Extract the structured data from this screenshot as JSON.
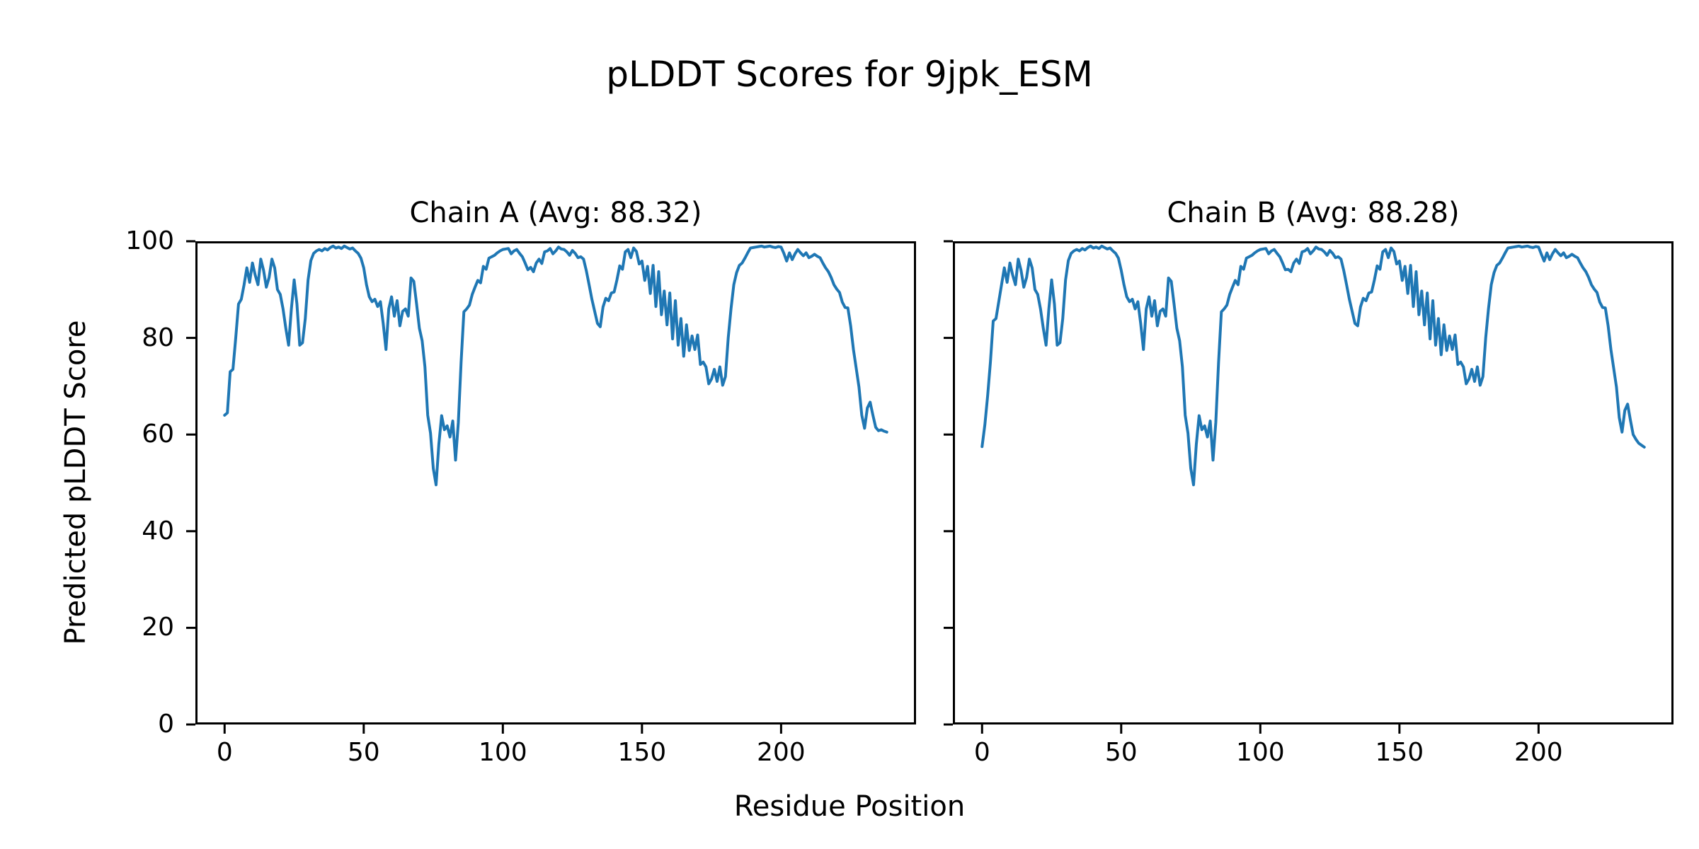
{
  "figure": {
    "title": "pLDDT Scores for 9jpk_ESM",
    "x_axis_label": "Residue Position",
    "y_axis_label": "Predicted pLDDT Score",
    "background_color": "#ffffff",
    "text_color": "#000000"
  },
  "chart_data": {
    "type": "line",
    "title": "pLDDT Scores for 9jpk_ESM",
    "xlabel": "Residue Position",
    "ylabel": "Predicted pLDDT Score",
    "line_color": "#1f77b4",
    "line_width": 4,
    "grid": false,
    "legend": "none",
    "xlim": [
      -10.5,
      248.5
    ],
    "ylim": [
      0,
      100
    ],
    "x_ticks": [
      0,
      50,
      100,
      150,
      200
    ],
    "y_ticks": [
      0,
      20,
      40,
      60,
      80,
      100
    ],
    "x_start": 0,
    "x_step": 1,
    "panels": [
      {
        "title": "Chain A (Avg: 88.32)",
        "name": "Chain A",
        "avg": 88.32,
        "show_y_tick_labels": true,
        "values": [
          64,
          64.5,
          73,
          73.5,
          80,
          87,
          88,
          91,
          94.5,
          91.5,
          95.5,
          93,
          91,
          96.3,
          94,
          90.5,
          92.5,
          96.3,
          94.5,
          90,
          89,
          86,
          82,
          78.5,
          86,
          92,
          87,
          78.5,
          79,
          84,
          92,
          96,
          97.5,
          98,
          98.3,
          98,
          98.5,
          98.2,
          98.7,
          99,
          98.6,
          98.8,
          98.5,
          99,
          98.7,
          98.4,
          98.6,
          98,
          97.5,
          96.5,
          94.5,
          91,
          88.5,
          87.5,
          88,
          86.5,
          87.5,
          83,
          77.6,
          86,
          88.5,
          84.5,
          87.7,
          82.5,
          85.5,
          86,
          84.5,
          92.4,
          91.7,
          87,
          82,
          79.4,
          74,
          64,
          60.3,
          53,
          49.6,
          58,
          63.9,
          61,
          61.8,
          59.5,
          62.8,
          54.7,
          62.5,
          75,
          85.4,
          86,
          86.8,
          89,
          90.5,
          91.9,
          91.4,
          94.8,
          94.2,
          96.5,
          96.8,
          97.1,
          97.6,
          98,
          98.3,
          98.4,
          98.5,
          97.4,
          98,
          98.3,
          97.5,
          96.8,
          95.5,
          94.1,
          94.6,
          93.7,
          95.5,
          96.3,
          95.4,
          97.8,
          98,
          98.5,
          97.4,
          98,
          98.8,
          98.4,
          98.3,
          97.8,
          97.1,
          98.1,
          97.5,
          96.6,
          96.8,
          96.3,
          93.9,
          91,
          88,
          85.5,
          83,
          82.3,
          86.4,
          88.2,
          87.7,
          89.3,
          89.5,
          92,
          94.9,
          94.2,
          97.8,
          98.3,
          96.6,
          98.6,
          97.9,
          95.3,
          95.9,
          91.9,
          94.8,
          89.2,
          95,
          86.5,
          93.7,
          84.8,
          89.7,
          82.7,
          89.3,
          79.8,
          87.7,
          78.5,
          84,
          76.2,
          82.7,
          77.4,
          80.4,
          77.6,
          80.6,
          74.5,
          75,
          74,
          70.5,
          71.5,
          73.5,
          71,
          74,
          70.2,
          72,
          80,
          86,
          91,
          93.5,
          95,
          95.5,
          96.5,
          97.6,
          98.6,
          98.7,
          98.8,
          98.9,
          99,
          98.8,
          98.9,
          99,
          98.8,
          98.7,
          98.9,
          98.8,
          97.5,
          95.9,
          97.6,
          96.2,
          97.4,
          98.3,
          97.6,
          97,
          97.6,
          96.6,
          96.9,
          97.3,
          96.9,
          96.6,
          95.5,
          94.5,
          93.7,
          92.5,
          91,
          90.1,
          89.4,
          87.4,
          86.3,
          86.2,
          82.5,
          77.6,
          73.7,
          69.8,
          64,
          61.3,
          65.5,
          66.7,
          64,
          61.5,
          60.8,
          61,
          60.7,
          60.5
        ]
      },
      {
        "title": "Chain B (Avg: 88.28)",
        "name": "Chain B",
        "avg": 88.28,
        "show_y_tick_labels": false,
        "values": [
          57.5,
          62,
          68,
          75,
          83.5,
          84,
          87.5,
          91,
          94.5,
          91.5,
          95.5,
          93,
          91,
          96.3,
          94,
          90.5,
          92.5,
          96.3,
          94.5,
          90,
          89,
          86,
          82,
          78.5,
          86,
          92,
          87,
          78.5,
          79,
          84,
          92,
          96,
          97.5,
          98,
          98.3,
          98,
          98.5,
          98.2,
          98.7,
          99,
          98.6,
          98.8,
          98.5,
          99,
          98.7,
          98.4,
          98.6,
          98,
          97.5,
          96.5,
          94,
          91,
          88.5,
          87.5,
          88,
          86,
          87.5,
          83,
          77.6,
          86,
          88.5,
          84.5,
          87.7,
          82.5,
          85.5,
          86,
          84.5,
          92.4,
          91.7,
          87,
          82,
          79.4,
          74,
          64,
          60.3,
          53,
          49.6,
          58,
          63.9,
          61,
          61.8,
          59.5,
          62.8,
          54.7,
          62.5,
          75,
          85.4,
          86,
          86.8,
          89,
          90.5,
          91.9,
          91,
          94.8,
          94.2,
          96.5,
          96.8,
          97.1,
          97.6,
          98,
          98.3,
          98.4,
          98.5,
          97.4,
          98,
          98.3,
          97.5,
          96.8,
          95.5,
          94.1,
          94.2,
          93.7,
          95.5,
          96.3,
          95.4,
          97.8,
          98,
          98.5,
          97.4,
          98,
          98.8,
          98.4,
          98.3,
          97.8,
          97.1,
          98.1,
          97.5,
          96.6,
          96.8,
          96.3,
          93.9,
          91,
          88,
          85.5,
          83,
          82.5,
          86.4,
          88.2,
          87.7,
          89.3,
          89.5,
          92,
          94.9,
          94.2,
          97.8,
          98.3,
          96.6,
          98.6,
          97.9,
          95.3,
          95.9,
          91.9,
          94.8,
          89.2,
          95,
          86.5,
          93.7,
          84.8,
          89.7,
          82.7,
          89.3,
          79.8,
          87.7,
          78.5,
          84,
          76.5,
          82.7,
          77.4,
          80.4,
          77.6,
          80.6,
          74.5,
          75,
          74,
          70.5,
          71.5,
          73.5,
          71,
          74,
          70.2,
          72,
          80,
          86,
          91,
          93.5,
          95,
          95.5,
          96.5,
          97.6,
          98.6,
          98.7,
          98.8,
          98.9,
          99,
          98.8,
          98.9,
          99,
          98.8,
          98.7,
          98.9,
          98.8,
          97.3,
          95.9,
          97.6,
          96.2,
          97.4,
          98.3,
          97.6,
          97,
          97.6,
          96.6,
          96.9,
          97.3,
          96.9,
          96.6,
          95.5,
          94.5,
          93.7,
          92.5,
          91,
          90.1,
          89.4,
          87.4,
          86.3,
          86.2,
          82.5,
          77.6,
          73.7,
          69.8,
          63.5,
          60.5,
          65,
          66.3,
          63,
          60,
          59,
          58.2,
          57.8,
          57.4
        ]
      }
    ]
  }
}
